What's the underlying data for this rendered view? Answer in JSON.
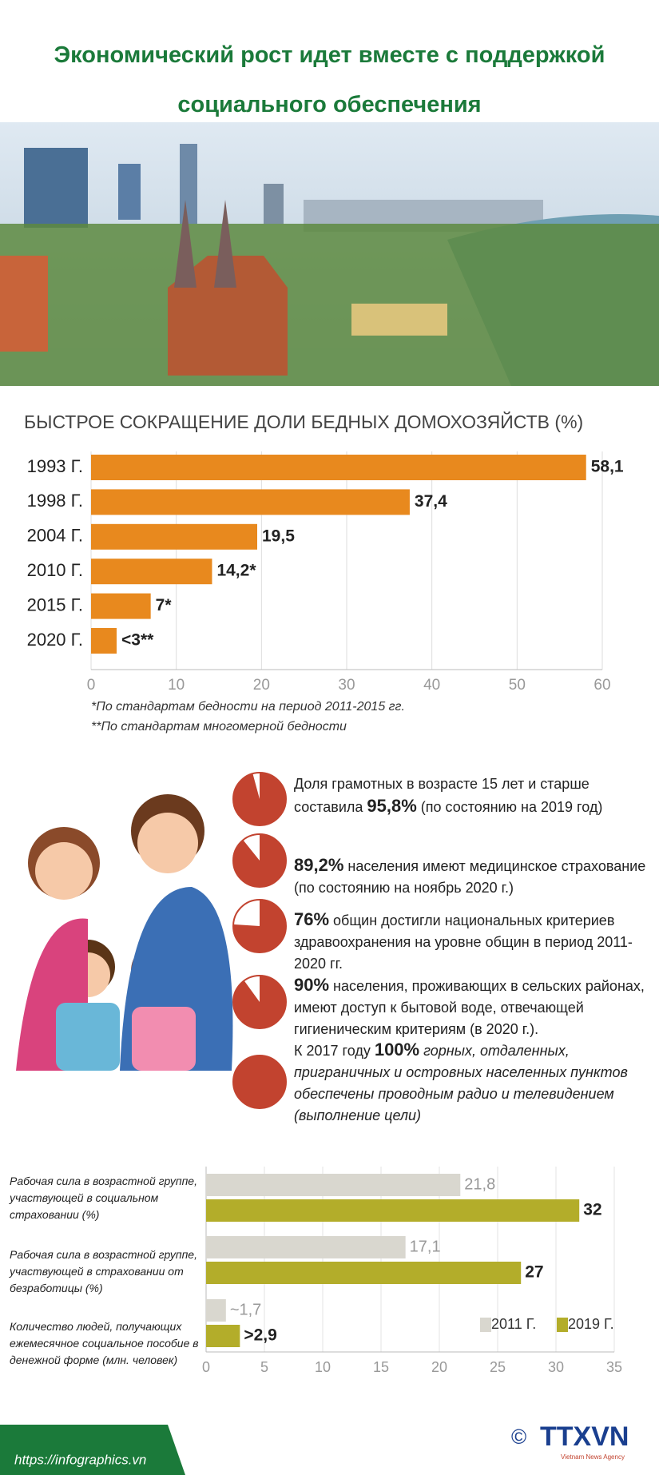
{
  "title": "Экономический рост идет вместе с поддержкой социального обеспечения",
  "chart_data": [
    {
      "type": "bar",
      "orientation": "horizontal",
      "title": "БЫСТРОЕ СОКРАЩЕНИЕ ДОЛИ БЕДНЫХ ДОМОХОЗЯЙСТВ (%)",
      "categories": [
        "1993 Г.",
        "1998 Г.",
        "2004 Г.",
        "2010 Г.",
        "2015 Г.",
        "2020 Г."
      ],
      "values": [
        58.1,
        37.4,
        19.5,
        14.2,
        7,
        3
      ],
      "value_labels": [
        "58,1",
        "37,4",
        "19,5",
        "14,2*",
        "7*",
        "<3**"
      ],
      "color": "#e8891e",
      "xlim": [
        0,
        60
      ],
      "xticks": [
        0,
        10,
        20,
        30,
        40,
        50,
        60
      ],
      "grid": true,
      "notes": [
        "*По стандартам бедности на период 2011-2015 гг.",
        "**По стандартам многомерной бедности"
      ]
    },
    {
      "type": "grouped-bar",
      "orientation": "horizontal",
      "categories": [
        "Рабочая сила в возрастной группе, участвующей в социальном страховании (%)",
        "Рабочая сила в возрастной группе, участвующей в страховании от безработицы (%)",
        "Количество людей, получающих ежемесячное социальное пособие в денежной форме (млн. человек)"
      ],
      "series": [
        {
          "name": "2011 Г.",
          "color": "#d9d7cf",
          "values": [
            21.8,
            17.1,
            1.7
          ],
          "value_labels": [
            "21,8",
            "17,1",
            "~1,7"
          ]
        },
        {
          "name": "2019 Г.",
          "color": "#b3ad2a",
          "values": [
            32,
            27,
            2.9
          ],
          "value_labels": [
            "32",
            "27",
            ">2,9"
          ]
        }
      ],
      "xlim": [
        0,
        35
      ],
      "xticks": [
        0,
        5,
        10,
        15,
        20,
        25,
        30,
        35
      ],
      "grid": true,
      "legend": "lower right"
    }
  ],
  "stats": [
    {
      "type": "pie",
      "value": 95.8,
      "before": "Доля грамотных в возрасте 15 лет и старше составила ",
      "value_label": "95,8%",
      "after": " (по состоянию на 2019 год)"
    },
    {
      "type": "pie",
      "value": 89.2,
      "value_label": "89,2%",
      "after": " населения имеют медицинское страхование (по состоянию на ноябрь 2020 г.)"
    },
    {
      "type": "pie",
      "value": 76,
      "value_label": "76%",
      "after": " общин достигли национальных критериев здравоохранения на уровне общин в период 2011-2020 гг."
    },
    {
      "type": "pie",
      "value": 90,
      "value_label": "90%",
      "after": " населения, проживающих в сельских районах, имеют доступ к бытовой воде, отвечающей гигиеническим критериям (в 2020 г.)."
    },
    {
      "type": "pie",
      "value": 100,
      "before": "К 2017 году ",
      "value_label": "100%",
      "after": " горных, отдаленных, приграничных и островных населенных пунктов обеспечены проводным радио и телевидением (выполнение цели)",
      "italic_after": true
    }
  ],
  "footer": {
    "url": "https://infographics.vn",
    "copyright": "©",
    "logo": "TTXVN",
    "agency": "Vietnam News Agency"
  }
}
